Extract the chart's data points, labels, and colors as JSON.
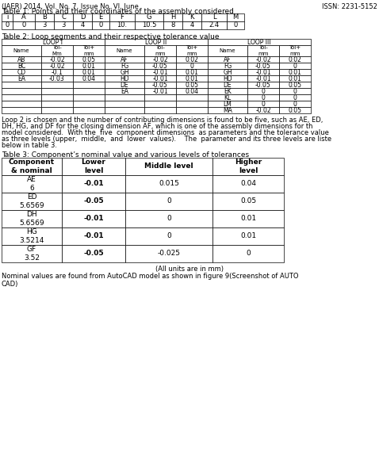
{
  "header_text": "(JAER) 2014, Vol. No. 7, Issue No. VI, June",
  "issn_text": "ISSN: 2231-5152",
  "table1_title": "Table 1: Points and their coordinates of the assembly considered",
  "table1_headers": [
    "i",
    "A",
    "B",
    "C",
    "D",
    "E",
    "F",
    "G",
    "H",
    "K",
    "L",
    "M"
  ],
  "table1_row": [
    "0",
    "3",
    "3",
    "4",
    "0",
    "10.",
    "10.5",
    "8",
    "4",
    "2.4",
    "0"
  ],
  "table2_title": "Table 2: Loop segments and their respective tolerance value",
  "loop1_name_col": [
    "AB",
    "BC",
    "CD",
    "EA"
  ],
  "loop1_tolmm_col": [
    "-0.02",
    "-0.02",
    "-0.1",
    "-0.03"
  ],
  "loop1_tolplus_col": [
    "0.05",
    "0.01",
    "0.01",
    "0.04"
  ],
  "loop2_name_col": [
    "AF",
    "FG",
    "GH",
    "HD",
    "DE",
    "EA"
  ],
  "loop2_tolmm_col": [
    "-0.02",
    "-0.05",
    "-0.01",
    "-0.01",
    "-0.05",
    "-0.01"
  ],
  "loop2_tolplus_col": [
    "0.02",
    "0",
    "0.01",
    "0.01",
    "0.05",
    "0.04"
  ],
  "loop3_name_col": [
    "AF",
    "FG",
    "GH",
    "HD",
    "DE",
    "EK",
    "KL",
    "LM",
    "MA"
  ],
  "loop3_tolmm_col": [
    "-0.02",
    "-0.05",
    "-0.01",
    "-0.01",
    "-0.05",
    "0",
    "0",
    "0",
    "-0.02"
  ],
  "loop3_tolplus_col": [
    "0.02",
    "0",
    "0.01",
    "0.01",
    "0.05",
    "0",
    "0",
    "0",
    "0.05"
  ],
  "para_text": "Loop 2 is chosen and the number of contributing dimensions is found to be five, such as AE, ED,\nDH, HG, and DF for the closing dimension AF, which is one of the assembly dimensions for th\nmodel considered.  With the  five  component dimensions  as parameters and the tolerance value\nas three levels (upper,  middle,  and  lower  values).    The  parameter and its three levels are liste\nbelow in table 3.",
  "table3_title": "Table 3: Component’s nominal value and various levels of tolerances",
  "table3_col_headers": [
    "Component\n& nominal",
    "Lower\nlevel",
    "Middle level",
    "Higher\nlevel"
  ],
  "table3_rows": [
    [
      "AE\n6",
      "-0.01",
      "0.015",
      "0.04"
    ],
    [
      "ED\n5.6569",
      "-0.05",
      "0",
      "0.05"
    ],
    [
      "DH\n5.6569",
      "-0.01",
      "0",
      "0.01"
    ],
    [
      "HG\n3.5214",
      "-0.01",
      "0",
      "0.01"
    ],
    [
      "GF\n3.52",
      "-0.05",
      "-0.025",
      "0"
    ]
  ],
  "footer_text": "(All units are in mm)",
  "footer_text2": "Nominal values are found from AutoCAD model as shown in figure 9(Screenshot of AUTO\nCAD)"
}
